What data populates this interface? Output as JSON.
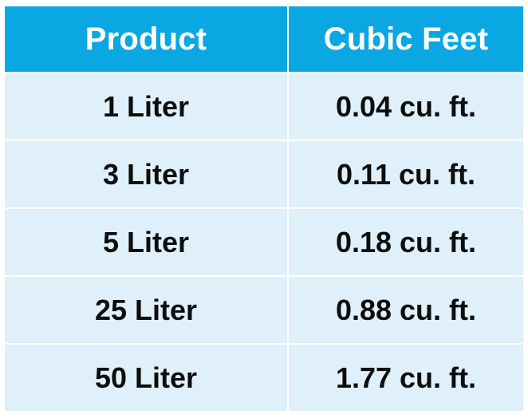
{
  "table": {
    "headers": [
      "Product",
      "Cubic Feet"
    ],
    "rows": [
      {
        "product": "1 Liter",
        "cubic_feet": "0.04 cu. ft."
      },
      {
        "product": "3 Liter",
        "cubic_feet": "0.11 cu. ft."
      },
      {
        "product": "5 Liter",
        "cubic_feet": "0.18 cu. ft."
      },
      {
        "product": "25 Liter",
        "cubic_feet": "0.88 cu. ft."
      },
      {
        "product": "50 Liter",
        "cubic_feet": "1.77 cu. ft."
      }
    ]
  },
  "colors": {
    "header_background": "#0aa7e3",
    "header_text": "#ffffff",
    "row_background": "#dff0fb",
    "row_text": "#0d0d0d",
    "grid_lines": "#ffffff"
  }
}
